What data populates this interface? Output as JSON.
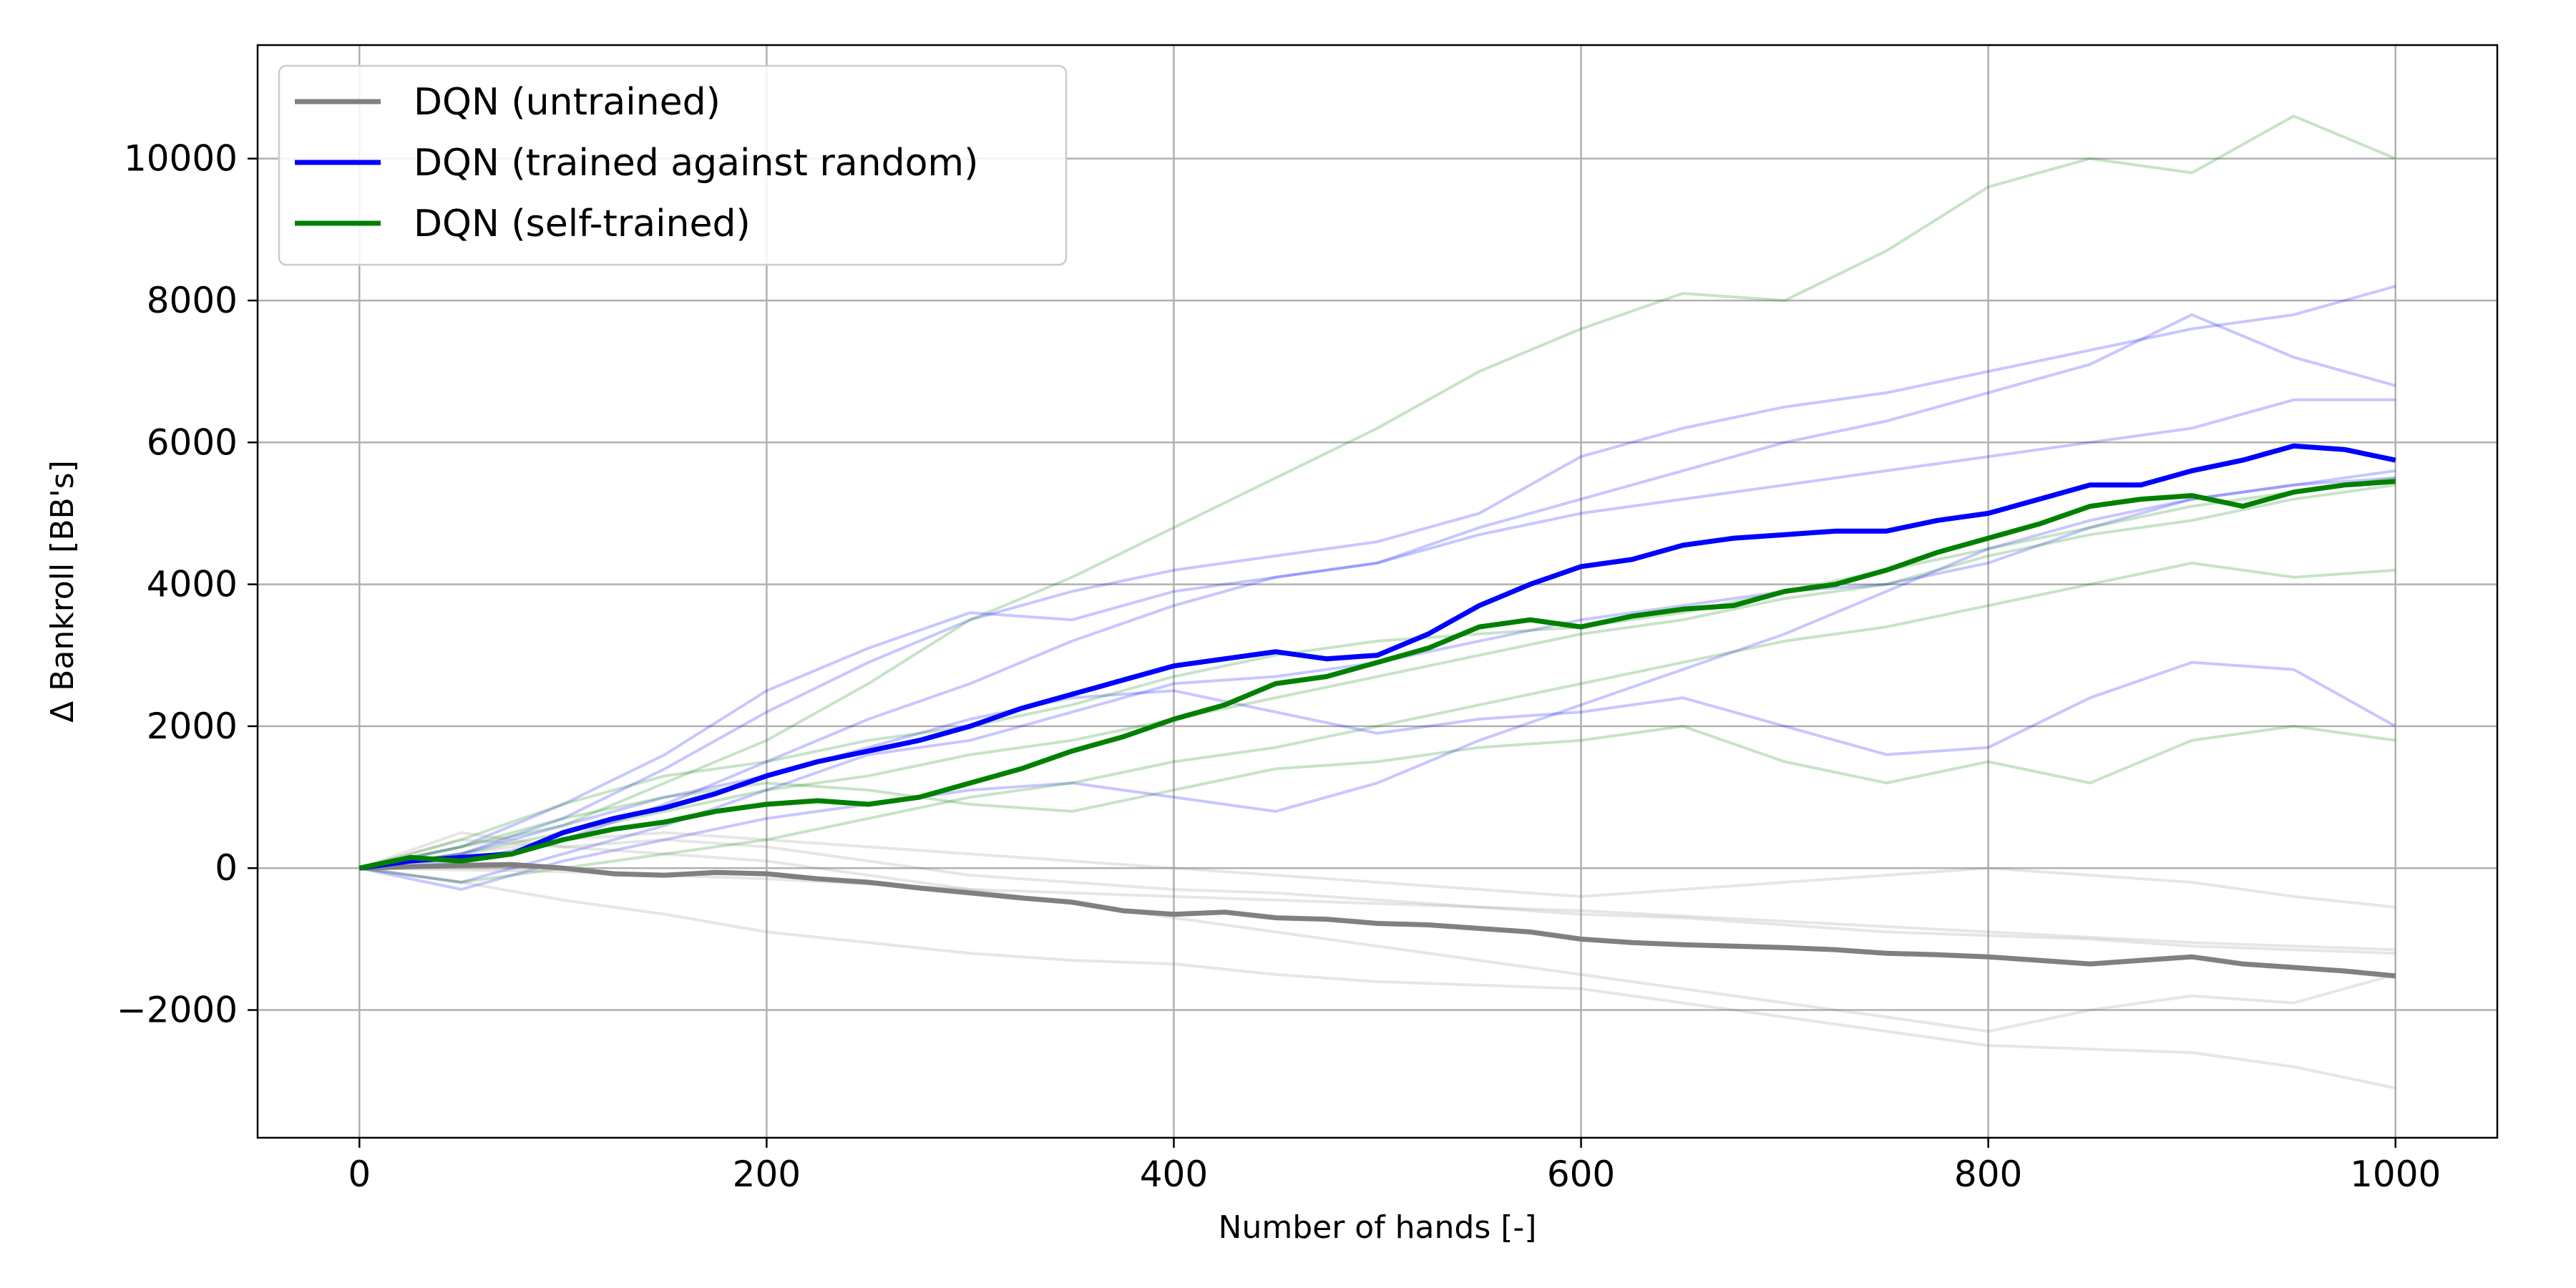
{
  "chart_data": {
    "type": "line",
    "title": "",
    "xlabel": "Number of hands [-]",
    "ylabel": "Δ Bankroll [BB's]",
    "xlim": [
      -50,
      1050
    ],
    "ylim": [
      -3800,
      11600
    ],
    "xticks": [
      0,
      200,
      400,
      600,
      800,
      1000
    ],
    "yticks": [
      -2000,
      0,
      2000,
      4000,
      6000,
      8000,
      10000
    ],
    "xtick_labels": [
      "0",
      "200",
      "400",
      "600",
      "800",
      "1000"
    ],
    "ytick_labels": [
      "−2000",
      "0",
      "2000",
      "4000",
      "6000",
      "8000",
      "10000"
    ],
    "grid": true,
    "legend_position": "top-left",
    "colors": {
      "untrained": "#808080",
      "trained_random": "#0000ff",
      "self_trained": "#008000"
    },
    "series": [
      {
        "name": "DQN (untrained)",
        "color": "#808080",
        "x": [
          0,
          25,
          50,
          75,
          100,
          125,
          150,
          175,
          200,
          225,
          250,
          275,
          300,
          325,
          350,
          375,
          400,
          425,
          450,
          475,
          500,
          525,
          550,
          575,
          600,
          625,
          650,
          675,
          700,
          725,
          750,
          775,
          800,
          825,
          850,
          875,
          900,
          925,
          950,
          975,
          1000
        ],
        "y": [
          0,
          20,
          40,
          50,
          0,
          -80,
          -100,
          -60,
          -80,
          -150,
          -200,
          -280,
          -350,
          -420,
          -480,
          -600,
          -650,
          -620,
          -700,
          -720,
          -780,
          -800,
          -850,
          -900,
          -1000,
          -1050,
          -1080,
          -1100,
          -1120,
          -1150,
          -1200,
          -1220,
          -1250,
          -1300,
          -1350,
          -1300,
          -1250,
          -1350,
          -1400,
          -1450,
          -1520
        ]
      },
      {
        "name": "DQN (trained against random)",
        "color": "#0000ff",
        "x": [
          0,
          25,
          50,
          75,
          100,
          125,
          150,
          175,
          200,
          225,
          250,
          275,
          300,
          325,
          350,
          375,
          400,
          425,
          450,
          475,
          500,
          525,
          550,
          575,
          600,
          625,
          650,
          675,
          700,
          725,
          750,
          775,
          800,
          825,
          850,
          875,
          900,
          925,
          950,
          975,
          1000
        ],
        "y": [
          0,
          100,
          150,
          200,
          500,
          700,
          850,
          1050,
          1300,
          1500,
          1650,
          1800,
          2000,
          2250,
          2450,
          2650,
          2850,
          2950,
          3050,
          2950,
          3000,
          3300,
          3700,
          4000,
          4250,
          4350,
          4550,
          4650,
          4700,
          4750,
          4750,
          4900,
          5000,
          5200,
          5400,
          5400,
          5600,
          5750,
          5950,
          5900,
          5750
        ]
      },
      {
        "name": "DQN (self-trained)",
        "color": "#008000",
        "x": [
          0,
          25,
          50,
          75,
          100,
          125,
          150,
          175,
          200,
          225,
          250,
          275,
          300,
          325,
          350,
          375,
          400,
          425,
          450,
          475,
          500,
          525,
          550,
          575,
          600,
          625,
          650,
          675,
          700,
          725,
          750,
          775,
          800,
          825,
          850,
          875,
          900,
          925,
          950,
          975,
          1000
        ],
        "y": [
          0,
          150,
          100,
          200,
          400,
          550,
          650,
          800,
          900,
          950,
          900,
          1000,
          1200,
          1400,
          1650,
          1850,
          2100,
          2300,
          2600,
          2700,
          2900,
          3100,
          3400,
          3500,
          3400,
          3550,
          3650,
          3700,
          3900,
          4000,
          4200,
          4450,
          4650,
          4850,
          5100,
          5200,
          5250,
          5100,
          5300,
          5400,
          5450
        ]
      }
    ],
    "background_runs": [
      {
        "group": "trained_random",
        "color": "#0000ff",
        "x": [
          0,
          50,
          100,
          150,
          200,
          250,
          300,
          350,
          400,
          450,
          500,
          550,
          600,
          650,
          700,
          750,
          800,
          850,
          900,
          950,
          1000
        ],
        "y": [
          0,
          200,
          700,
          1400,
          2200,
          2900,
          3500,
          3900,
          4200,
          4400,
          4600,
          5000,
          5800,
          6200,
          6500,
          6700,
          7000,
          7300,
          7600,
          7800,
          8200
        ]
      },
      {
        "group": "trained_random",
        "color": "#0000ff",
        "x": [
          0,
          50,
          100,
          150,
          200,
          250,
          300,
          350,
          400,
          450,
          500,
          550,
          600,
          650,
          700,
          750,
          800,
          850,
          900,
          950,
          1000
        ],
        "y": [
          0,
          300,
          900,
          1600,
          2500,
          3100,
          3600,
          3500,
          3900,
          4100,
          4300,
          4800,
          5200,
          5600,
          6000,
          6300,
          6700,
          7100,
          7800,
          7200,
          6800
        ]
      },
      {
        "group": "trained_random",
        "color": "#0000ff",
        "x": [
          0,
          50,
          100,
          150,
          200,
          250,
          300,
          350,
          400,
          450,
          500,
          550,
          600,
          650,
          700,
          750,
          800,
          850,
          900,
          950,
          1000
        ],
        "y": [
          0,
          100,
          400,
          900,
          1500,
          2100,
          2600,
          3200,
          3700,
          4100,
          4300,
          4700,
          5000,
          5200,
          5400,
          5600,
          5800,
          6000,
          6200,
          6600,
          6600
        ]
      },
      {
        "group": "trained_random",
        "color": "#0000ff",
        "x": [
          0,
          50,
          100,
          150,
          200,
          250,
          300,
          350,
          400,
          450,
          500,
          550,
          600,
          650,
          700,
          750,
          800,
          850,
          900,
          950,
          1000
        ],
        "y": [
          0,
          -200,
          200,
          600,
          1100,
          1600,
          1800,
          2200,
          2600,
          2700,
          2900,
          3200,
          3500,
          3700,
          3900,
          4000,
          4300,
          4800,
          5200,
          5400,
          5500
        ]
      },
      {
        "group": "trained_random",
        "color": "#0000ff",
        "x": [
          0,
          50,
          100,
          150,
          200,
          250,
          300,
          350,
          400,
          450,
          500,
          550,
          600,
          650,
          700,
          750,
          800,
          850,
          900,
          950,
          1000
        ],
        "y": [
          0,
          200,
          600,
          1000,
          1300,
          1700,
          2100,
          2400,
          2500,
          2200,
          1900,
          2100,
          2200,
          2400,
          2000,
          1600,
          1700,
          2400,
          2900,
          2800,
          2000
        ]
      },
      {
        "group": "trained_random",
        "color": "#0000ff",
        "x": [
          0,
          50,
          100,
          150,
          200,
          250,
          300,
          350,
          400,
          450,
          500,
          550,
          600,
          650,
          700,
          750,
          800,
          850,
          900,
          950,
          1000
        ],
        "y": [
          0,
          -300,
          100,
          400,
          700,
          900,
          1100,
          1200,
          1000,
          800,
          1200,
          1800,
          2300,
          2800,
          3300,
          3900,
          4500,
          4900,
          5200,
          5400,
          5600
        ]
      },
      {
        "group": "self_trained",
        "color": "#008000",
        "x": [
          0,
          50,
          100,
          150,
          200,
          250,
          300,
          350,
          400,
          450,
          500,
          550,
          600,
          650,
          700,
          750,
          800,
          850,
          900,
          950,
          1000
        ],
        "y": [
          0,
          300,
          600,
          1200,
          1800,
          2600,
          3500,
          4100,
          4800,
          5500,
          6200,
          7000,
          7600,
          8100,
          8000,
          8700,
          9600,
          10000,
          9800,
          10600,
          10000
        ]
      },
      {
        "group": "self_trained",
        "color": "#008000",
        "x": [
          0,
          50,
          100,
          150,
          200,
          250,
          300,
          350,
          400,
          450,
          500,
          550,
          600,
          650,
          700,
          750,
          800,
          850,
          900,
          950,
          1000
        ],
        "y": [
          0,
          400,
          900,
          1300,
          1500,
          1800,
          2000,
          2300,
          2700,
          3000,
          3200,
          3300,
          3400,
          3600,
          3900,
          4200,
          4500,
          4800,
          5100,
          5300,
          5500
        ]
      },
      {
        "group": "self_trained",
        "color": "#008000",
        "x": [
          0,
          50,
          100,
          150,
          200,
          250,
          300,
          350,
          400,
          450,
          500,
          550,
          600,
          650,
          700,
          750,
          800,
          850,
          900,
          950,
          1000
        ],
        "y": [
          0,
          200,
          500,
          800,
          1100,
          1300,
          1600,
          1800,
          2100,
          2400,
          2700,
          3000,
          3300,
          3500,
          3800,
          4000,
          4400,
          4700,
          4900,
          5200,
          5400
        ]
      },
      {
        "group": "self_trained",
        "color": "#008000",
        "x": [
          0,
          50,
          100,
          150,
          200,
          250,
          300,
          350,
          400,
          450,
          500,
          550,
          600,
          650,
          700,
          750,
          800,
          850,
          900,
          950,
          1000
        ],
        "y": [
          0,
          -200,
          0,
          200,
          400,
          700,
          1000,
          1200,
          1500,
          1700,
          2000,
          2300,
          2600,
          2900,
          3200,
          3400,
          3700,
          4000,
          4300,
          4100,
          4200
        ]
      },
      {
        "group": "self_trained",
        "color": "#008000",
        "x": [
          0,
          50,
          100,
          150,
          200,
          250,
          300,
          350,
          400,
          450,
          500,
          550,
          600,
          650,
          700,
          750,
          800,
          850,
          900,
          950,
          1000
        ],
        "y": [
          0,
          300,
          700,
          1000,
          1200,
          1100,
          900,
          800,
          1100,
          1400,
          1500,
          1700,
          1800,
          2000,
          1500,
          1200,
          1500,
          1200,
          1800,
          2000,
          1800
        ]
      },
      {
        "group": "untrained",
        "color": "#808080",
        "x": [
          0,
          50,
          100,
          150,
          200,
          250,
          300,
          350,
          400,
          450,
          500,
          550,
          600,
          650,
          700,
          750,
          800,
          850,
          900,
          950,
          1000
        ],
        "y": [
          0,
          500,
          300,
          400,
          300,
          100,
          -100,
          -200,
          -300,
          -350,
          -450,
          -550,
          -650,
          -700,
          -800,
          -900,
          -950,
          -1000,
          -1100,
          -1150,
          -1200
        ]
      },
      {
        "group": "untrained",
        "color": "#808080",
        "x": [
          0,
          50,
          100,
          150,
          200,
          250,
          300,
          350,
          400,
          450,
          500,
          550,
          600,
          650,
          700,
          750,
          800,
          850,
          900,
          950,
          1000
        ],
        "y": [
          0,
          -200,
          -450,
          -650,
          -900,
          -1050,
          -1200,
          -1300,
          -1350,
          -1500,
          -1600,
          -1650,
          -1700,
          -1900,
          -2100,
          -2300,
          -2500,
          -2550,
          -2600,
          -2800,
          -3100
        ]
      },
      {
        "group": "untrained",
        "color": "#808080",
        "x": [
          0,
          50,
          100,
          150,
          200,
          250,
          300,
          350,
          400,
          450,
          500,
          550,
          600,
          650,
          700,
          750,
          800,
          850,
          900,
          950,
          1000
        ],
        "y": [
          0,
          400,
          300,
          200,
          100,
          -100,
          -300,
          -500,
          -700,
          -900,
          -1100,
          -1300,
          -1500,
          -1700,
          -1900,
          -2100,
          -2300,
          -2000,
          -1800,
          -1900,
          -1500
        ]
      },
      {
        "group": "untrained",
        "color": "#808080",
        "x": [
          0,
          50,
          100,
          150,
          200,
          250,
          300,
          350,
          400,
          450,
          500,
          550,
          600,
          650,
          700,
          750,
          800,
          850,
          900,
          950,
          1000
        ],
        "y": [
          0,
          200,
          400,
          500,
          400,
          300,
          200,
          100,
          0,
          -100,
          -200,
          -300,
          -400,
          -300,
          -200,
          -100,
          0,
          -100,
          -200,
          -400,
          -550
        ]
      },
      {
        "group": "untrained",
        "color": "#808080",
        "x": [
          0,
          100,
          200,
          300,
          400,
          500,
          600,
          700,
          800,
          900,
          1000
        ],
        "y": [
          0,
          -50,
          -150,
          -300,
          -400,
          -500,
          -600,
          -750,
          -900,
          -1050,
          -1150
        ]
      }
    ]
  }
}
